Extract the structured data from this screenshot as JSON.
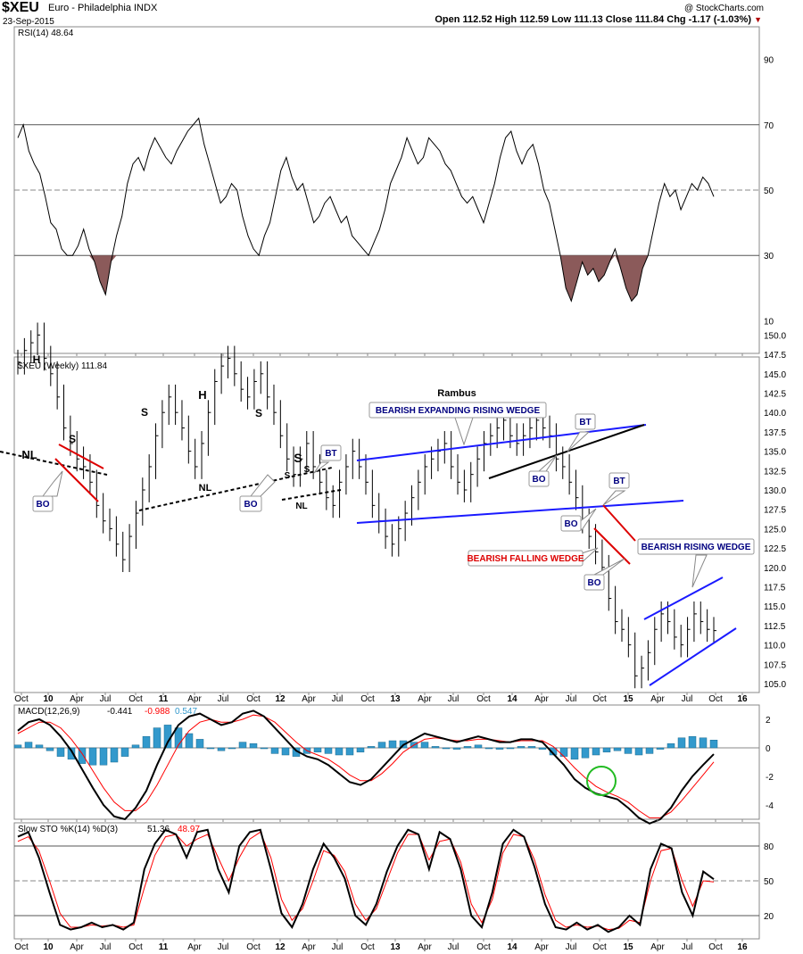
{
  "header": {
    "symbol": "$XEU",
    "description": "Euro - Philadelphia INDX",
    "date": "23-Sep-2015",
    "watermark": "@ StockCharts.com",
    "quote": "Open 112.52  High 112.59  Low 111.13  Close 111.84  Chg -1.17 (-1.03%)",
    "down_arrow_icon": "triangle-down-icon"
  },
  "colors": {
    "price_bar": "#000000",
    "wedge_blue": "#1a1aff",
    "wedge_red": "#dd0000",
    "label_blue": "#000080",
    "macd_histogram": "#3399cc",
    "signal_red": "#ff0000",
    "rsi_fill": "#8b5a5a",
    "circle_green": "#22bb22"
  },
  "time_axis": {
    "labels": [
      "Oct",
      "10",
      "Apr",
      "Jul",
      "Oct",
      "11",
      "Apr",
      "Jul",
      "Oct",
      "12",
      "Apr",
      "Jul",
      "Oct",
      "13",
      "Apr",
      "Jul",
      "Oct",
      "14",
      "Apr",
      "Jul",
      "Oct",
      "15",
      "Apr",
      "Jul",
      "Oct",
      "16"
    ],
    "bold": [
      "10",
      "11",
      "12",
      "13",
      "14",
      "15",
      "16"
    ]
  },
  "chart_data": [
    {
      "type": "line",
      "panel": "rsi",
      "title": "RSI(14) 48.64",
      "ylim": [
        0,
        100
      ],
      "yticks": [
        10,
        30,
        50,
        70,
        90
      ],
      "reference_lines": [
        30,
        50,
        70
      ],
      "x_range": [
        "2009-09",
        "2015-09"
      ],
      "series": [
        {
          "values": [
            66,
            70,
            62,
            58,
            55,
            48,
            40,
            38,
            32,
            30,
            30,
            33,
            38,
            32,
            28,
            22,
            18,
            28,
            36,
            42,
            52,
            58,
            60,
            56,
            62,
            66,
            63,
            60,
            58,
            62,
            65,
            68,
            70,
            72,
            64,
            58,
            52,
            46,
            48,
            52,
            50,
            42,
            36,
            32,
            30,
            36,
            40,
            48,
            56,
            60,
            54,
            50,
            52,
            46,
            40,
            42,
            46,
            48,
            44,
            40,
            42,
            36,
            34,
            32,
            30,
            34,
            38,
            44,
            52,
            56,
            60,
            66,
            62,
            58,
            60,
            66,
            64,
            62,
            58,
            56,
            52,
            48,
            46,
            48,
            44,
            40,
            46,
            52,
            60,
            66,
            68,
            62,
            58,
            62,
            64,
            58,
            50,
            46,
            38,
            30,
            20,
            16,
            22,
            28,
            24,
            26,
            22,
            24,
            28,
            32,
            26,
            20,
            16,
            18,
            26,
            30,
            38,
            46,
            52,
            48,
            50,
            44,
            48,
            52,
            50,
            54,
            52,
            48
          ]
        }
      ]
    },
    {
      "type": "candlestick",
      "panel": "price",
      "title": "$XEU (Weekly) 111.84",
      "ylim": [
        104,
        152.5
      ],
      "yticks": [
        105,
        107.5,
        110,
        112.5,
        115,
        117.5,
        120,
        122.5,
        125,
        127.5,
        130,
        132.5,
        135,
        137.5,
        140,
        142.5,
        145,
        147.5,
        150
      ],
      "x_range": [
        "2009-09",
        "2015-09"
      ],
      "series": [
        {
          "name": "$XEU weekly close",
          "values": [
            146.5,
            148,
            149,
            150,
            147,
            145,
            142,
            138,
            136,
            134,
            133,
            131,
            128,
            126,
            125,
            123,
            121,
            124,
            127,
            130,
            133,
            137,
            140,
            142,
            140,
            138,
            135,
            133,
            136,
            140,
            144,
            146,
            147,
            145,
            143,
            142,
            144,
            145,
            142,
            140,
            137,
            134,
            132,
            134,
            136,
            133,
            131,
            129,
            128,
            131,
            133,
            135,
            133,
            131,
            128,
            126,
            124,
            123,
            125,
            127,
            129,
            131,
            133,
            134,
            135,
            136,
            133,
            131,
            130,
            132,
            134,
            136,
            137,
            138,
            139,
            137,
            136,
            137,
            138,
            139,
            138,
            137,
            134,
            133,
            131,
            129,
            126,
            124,
            122,
            120,
            116,
            113,
            112,
            110,
            106,
            107,
            109,
            112,
            114,
            113,
            111,
            110,
            112,
            114,
            113,
            112,
            111.84
          ]
        }
      ],
      "annotations": [
        "H",
        "S",
        "NL",
        "BO",
        "S",
        "H",
        "S",
        "NL",
        "BO",
        "S",
        "S",
        "S",
        "NL",
        "BT",
        "Rambus",
        "BEARISH EXPANDING RISING WEDGE",
        "BT",
        "BO",
        "BT",
        "BO",
        "BEARISH FALLING WEDGE",
        "BO",
        "BEARISH RISING WEDGE"
      ]
    },
    {
      "type": "line",
      "panel": "macd",
      "title": "MACD(12,26,9)",
      "values_text": [
        "-0.441",
        "-0.988",
        "0.547"
      ],
      "ylim": [
        -5,
        3
      ],
      "yticks": [
        -4,
        -2,
        0,
        2
      ],
      "x_range": [
        "2009-09",
        "2015-09"
      ],
      "series": [
        {
          "values": [
            1.2,
            1.8,
            2.0,
            1.6,
            0.8,
            -0.2,
            -1.5,
            -2.8,
            -4.0,
            -4.8,
            -5.0,
            -4.2,
            -3.0,
            -1.2,
            0.4,
            1.6,
            2.2,
            2.4,
            2.0,
            1.6,
            1.8,
            2.4,
            2.6,
            2.2,
            1.4,
            0.6,
            -0.2,
            -0.6,
            -0.8,
            -1.2,
            -1.8,
            -2.4,
            -2.6,
            -2.2,
            -1.4,
            -0.6,
            0.2,
            0.6,
            1.0,
            0.8,
            0.6,
            0.4,
            0.6,
            0.8,
            0.6,
            0.4,
            0.4,
            0.6,
            0.6,
            0.4,
            -0.4,
            -1.2,
            -2.2,
            -2.8,
            -3.2,
            -3.4,
            -3.6,
            -4.2,
            -4.9,
            -5.3,
            -5.0,
            -4.2,
            -3.0,
            -2.0,
            -1.2,
            -0.441
          ]
        },
        {
          "values": [
            1.0,
            1.4,
            1.8,
            1.8,
            1.4,
            0.6,
            -0.4,
            -1.6,
            -2.8,
            -3.8,
            -4.4,
            -4.4,
            -3.8,
            -2.6,
            -1.2,
            0.2,
            1.2,
            1.8,
            2.0,
            1.8,
            1.8,
            2.0,
            2.3,
            2.2,
            1.8,
            1.1,
            0.4,
            -0.2,
            -0.5,
            -0.8,
            -1.3,
            -1.9,
            -2.3,
            -2.3,
            -1.8,
            -1.1,
            -0.3,
            0.2,
            0.6,
            0.7,
            0.6,
            0.5,
            0.5,
            0.6,
            0.6,
            0.5,
            0.4,
            0.5,
            0.5,
            0.5,
            0.1,
            -0.6,
            -1.4,
            -2.1,
            -2.7,
            -3.1,
            -3.4,
            -3.8,
            -4.4,
            -4.9,
            -4.9,
            -4.5,
            -3.7,
            -2.8,
            -1.9,
            -0.988
          ]
        }
      ],
      "histogram": [
        0.2,
        0.4,
        0.2,
        -0.2,
        -0.6,
        -0.8,
        -1.1,
        -1.2,
        -1.2,
        -1.0,
        -0.6,
        0.2,
        0.8,
        1.4,
        1.6,
        1.4,
        1.0,
        0.6,
        0.0,
        -0.2,
        0.0,
        0.4,
        0.3,
        0.0,
        -0.4,
        -0.5,
        -0.6,
        -0.4,
        -0.3,
        -0.4,
        -0.5,
        -0.5,
        -0.3,
        0.1,
        0.4,
        0.5,
        0.5,
        0.4,
        0.4,
        0.1,
        0.0,
        -0.1,
        0.1,
        0.2,
        0.0,
        -0.1,
        0.0,
        0.1,
        0.1,
        -0.1,
        -0.5,
        -0.6,
        -0.8,
        -0.7,
        -0.5,
        -0.3,
        -0.2,
        -0.4,
        -0.5,
        -0.4,
        -0.1,
        0.3,
        0.7,
        0.8,
        0.7,
        0.547
      ]
    },
    {
      "type": "line",
      "panel": "stochastic",
      "title": "Slow STO %K(14) %D(3)",
      "values_text": [
        "51.36",
        "48.97"
      ],
      "ylim": [
        0,
        100
      ],
      "yticks": [
        20,
        50,
        80
      ],
      "reference_lines": [
        20,
        50,
        80
      ],
      "x_range": [
        "2009-09",
        "2015-09"
      ],
      "series": [
        {
          "values": [
            88,
            92,
            70,
            40,
            12,
            8,
            10,
            14,
            10,
            12,
            8,
            14,
            60,
            82,
            94,
            90,
            70,
            92,
            94,
            60,
            40,
            80,
            92,
            94,
            60,
            22,
            10,
            30,
            60,
            82,
            70,
            52,
            20,
            12,
            30,
            58,
            80,
            94,
            90,
            60,
            92,
            86,
            60,
            20,
            10,
            40,
            82,
            94,
            88,
            62,
            30,
            10,
            8,
            14,
            8,
            12,
            6,
            10,
            20,
            12,
            60,
            82,
            78,
            40,
            20,
            58,
            51.36
          ]
        },
        {
          "values": [
            84,
            88,
            76,
            50,
            22,
            10,
            10,
            12,
            11,
            12,
            10,
            12,
            44,
            72,
            88,
            90,
            80,
            86,
            90,
            70,
            50,
            70,
            86,
            92,
            70,
            34,
            16,
            26,
            50,
            76,
            72,
            58,
            30,
            16,
            26,
            50,
            74,
            90,
            90,
            68,
            84,
            86,
            66,
            30,
            14,
            34,
            74,
            90,
            88,
            68,
            38,
            16,
            10,
            12,
            10,
            11,
            8,
            9,
            16,
            14,
            50,
            76,
            78,
            50,
            28,
            50,
            48.97
          ]
        }
      ]
    }
  ]
}
